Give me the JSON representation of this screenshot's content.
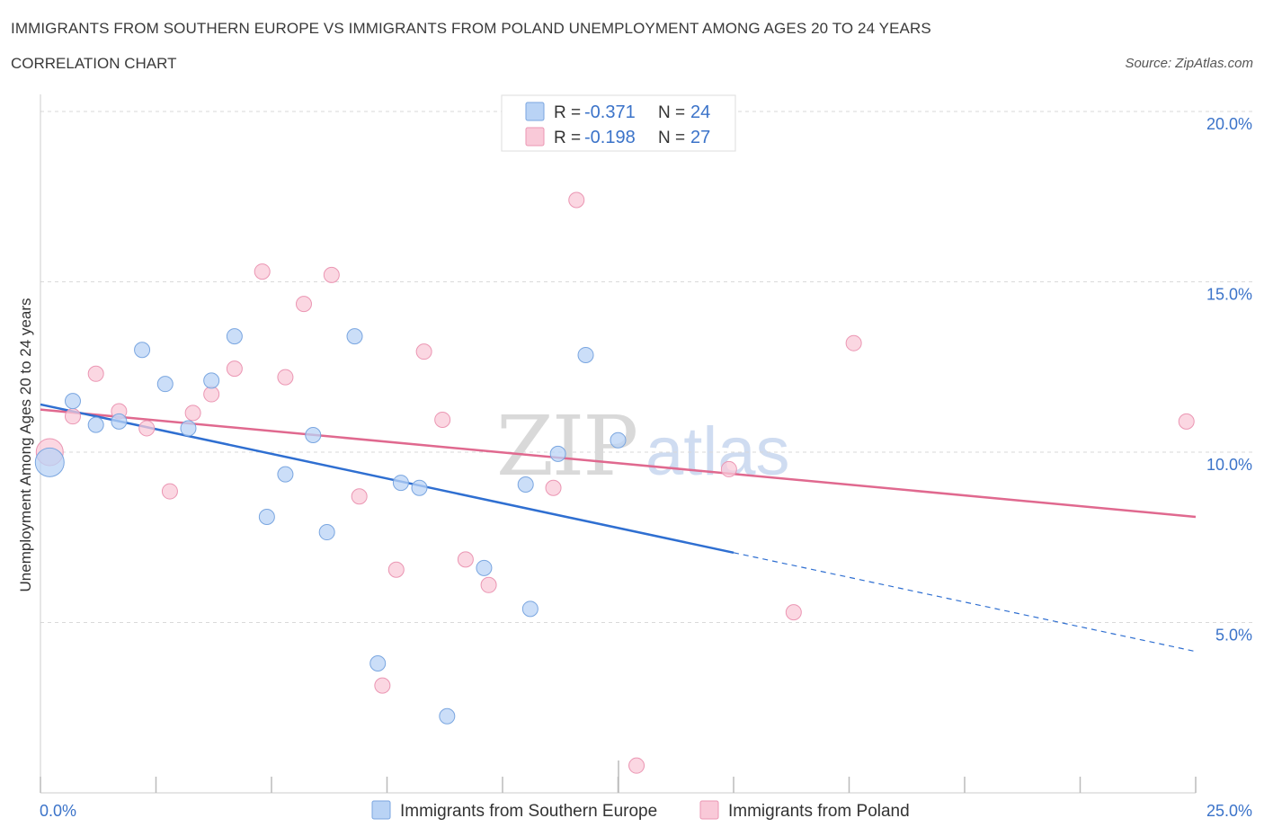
{
  "header": {
    "title": "IMMIGRANTS FROM SOUTHERN EUROPE VS IMMIGRANTS FROM POLAND UNEMPLOYMENT AMONG AGES 20 TO 24 YEARS",
    "subtitle": "CORRELATION CHART",
    "source": "Source: ZipAtlas.com"
  },
  "watermark": {
    "zip": "ZIP",
    "atlas": "atlas"
  },
  "colors": {
    "blue_fill": "#b9d3f5",
    "blue_stroke": "#7aa6e0",
    "blue_line": "#2f6fd1",
    "pink_fill": "#f9c9d8",
    "pink_stroke": "#eb96b3",
    "pink_line": "#e0698f",
    "grid": "#d9d9d9",
    "tick_text": "#3b73c9"
  },
  "legend": {
    "rows": [
      {
        "r_label": "R = ",
        "r_value": "-0.371",
        "n_label": "N = ",
        "n_value": "24",
        "color": "#b9d3f5"
      },
      {
        "r_label": "R = ",
        "r_value": "-0.198",
        "n_label": "N = ",
        "n_value": "27",
        "color": "#f9c9d8"
      }
    ]
  },
  "chart_data": {
    "type": "scatter",
    "title": "IMMIGRANTS FROM SOUTHERN EUROPE VS IMMIGRANTS FROM POLAND UNEMPLOYMENT AMONG AGES 20 TO 24 YEARS",
    "xlabel": "",
    "ylabel": "Unemployment Among Ages 20 to 24 years",
    "xlim": [
      0,
      25
    ],
    "ylim": [
      0,
      20.5
    ],
    "x_tick_labels": [
      "0.0%",
      "25.0%"
    ],
    "y_ticks": [
      5,
      10,
      15,
      20
    ],
    "y_tick_labels": [
      "5.0%",
      "10.0%",
      "15.0%",
      "20.0%"
    ],
    "grid": true,
    "legend_position": "top-center",
    "series": [
      {
        "name": "Immigrants from Southern Europe",
        "color": "#b9d3f5",
        "r": -0.371,
        "n": 24,
        "trend": {
          "x0": 0,
          "y0": 11.4,
          "x1": 15,
          "y1": 7.05,
          "dash_x1": 25,
          "dash_y1": 4.15
        },
        "points": [
          {
            "x": 0.2,
            "y": 9.7,
            "big": true
          },
          {
            "x": 0.7,
            "y": 11.5
          },
          {
            "x": 1.2,
            "y": 10.8
          },
          {
            "x": 1.7,
            "y": 10.9
          },
          {
            "x": 2.2,
            "y": 13.0
          },
          {
            "x": 2.7,
            "y": 12.0
          },
          {
            "x": 3.2,
            "y": 10.7
          },
          {
            "x": 3.7,
            "y": 12.1
          },
          {
            "x": 4.2,
            "y": 13.4
          },
          {
            "x": 4.9,
            "y": 8.1
          },
          {
            "x": 5.3,
            "y": 9.35
          },
          {
            "x": 5.9,
            "y": 10.5
          },
          {
            "x": 6.2,
            "y": 7.65
          },
          {
            "x": 6.8,
            "y": 13.4
          },
          {
            "x": 7.3,
            "y": 3.8
          },
          {
            "x": 7.8,
            "y": 9.1
          },
          {
            "x": 8.2,
            "y": 8.95
          },
          {
            "x": 8.8,
            "y": 2.25
          },
          {
            "x": 9.6,
            "y": 6.6
          },
          {
            "x": 10.6,
            "y": 5.4
          },
          {
            "x": 10.5,
            "y": 9.05
          },
          {
            "x": 11.2,
            "y": 9.95
          },
          {
            "x": 11.8,
            "y": 12.85
          },
          {
            "x": 12.5,
            "y": 10.35
          }
        ]
      },
      {
        "name": "Immigrants from Poland",
        "color": "#f9c9d8",
        "r": -0.198,
        "n": 27,
        "trend": {
          "x0": 0,
          "y0": 11.25,
          "x1": 25,
          "y1": 8.1
        },
        "points": [
          {
            "x": 0.2,
            "y": 10.0,
            "big": true
          },
          {
            "x": 0.7,
            "y": 11.05
          },
          {
            "x": 1.2,
            "y": 12.3
          },
          {
            "x": 1.7,
            "y": 11.2
          },
          {
            "x": 2.3,
            "y": 10.7
          },
          {
            "x": 2.8,
            "y": 8.85
          },
          {
            "x": 3.3,
            "y": 11.15
          },
          {
            "x": 3.7,
            "y": 11.7
          },
          {
            "x": 4.2,
            "y": 12.45
          },
          {
            "x": 4.8,
            "y": 15.3
          },
          {
            "x": 5.3,
            "y": 12.2
          },
          {
            "x": 5.7,
            "y": 14.35
          },
          {
            "x": 6.3,
            "y": 15.2
          },
          {
            "x": 6.9,
            "y": 8.7
          },
          {
            "x": 7.4,
            "y": 3.15
          },
          {
            "x": 7.7,
            "y": 6.55
          },
          {
            "x": 8.3,
            "y": 12.95
          },
          {
            "x": 8.7,
            "y": 10.95
          },
          {
            "x": 9.2,
            "y": 6.85
          },
          {
            "x": 9.7,
            "y": 6.1
          },
          {
            "x": 11.1,
            "y": 8.95
          },
          {
            "x": 11.6,
            "y": 17.4
          },
          {
            "x": 12.9,
            "y": 0.8
          },
          {
            "x": 14.9,
            "y": 9.5
          },
          {
            "x": 16.3,
            "y": 5.3
          },
          {
            "x": 17.6,
            "y": 13.2
          },
          {
            "x": 24.8,
            "y": 10.9
          }
        ]
      }
    ]
  }
}
